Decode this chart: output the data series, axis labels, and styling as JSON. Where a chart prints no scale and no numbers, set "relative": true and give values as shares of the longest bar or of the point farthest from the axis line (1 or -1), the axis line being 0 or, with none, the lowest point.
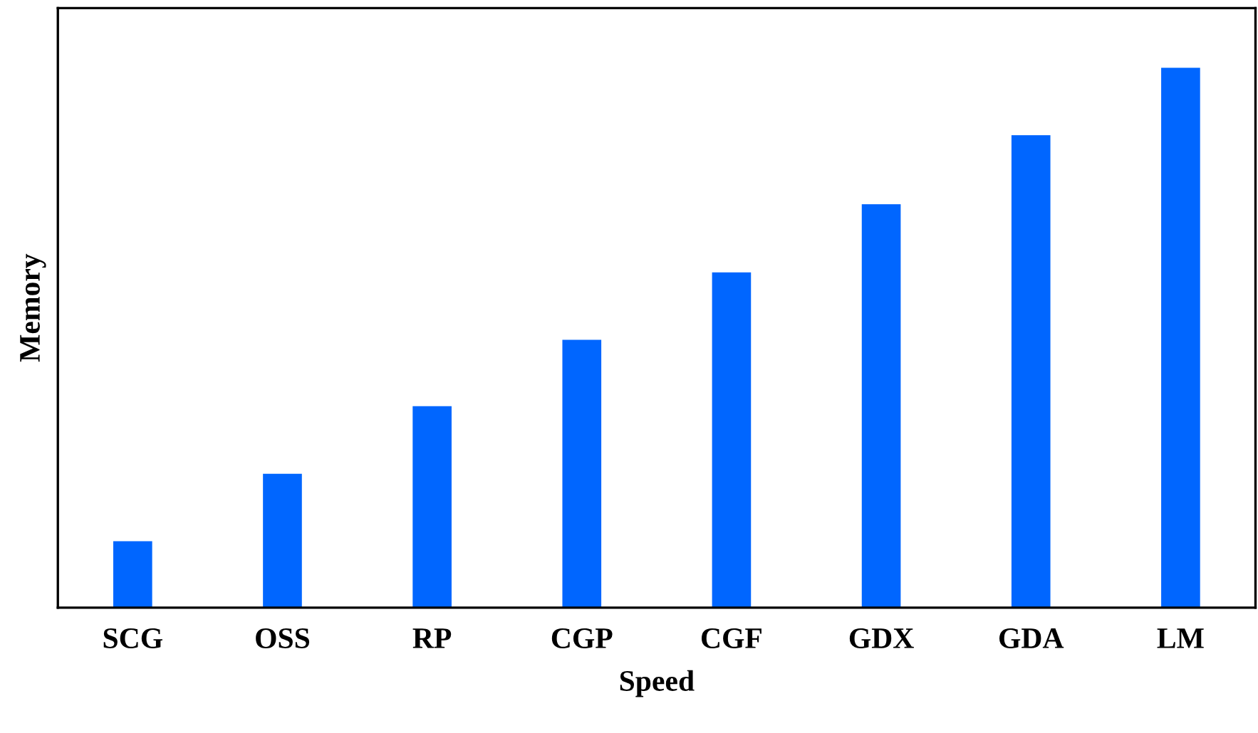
{
  "chart_data": {
    "type": "bar",
    "xlabel": "Speed",
    "ylabel": "Memory",
    "relative": true,
    "categories": [
      "SCG",
      "OSS",
      "RP",
      "CGP",
      "CGF",
      "GDX",
      "GDA",
      "LM"
    ],
    "values": [
      0.123,
      0.248,
      0.373,
      0.496,
      0.621,
      0.747,
      0.875,
      1.0
    ],
    "color": "#0066ff",
    "grid": false,
    "legend": false
  }
}
